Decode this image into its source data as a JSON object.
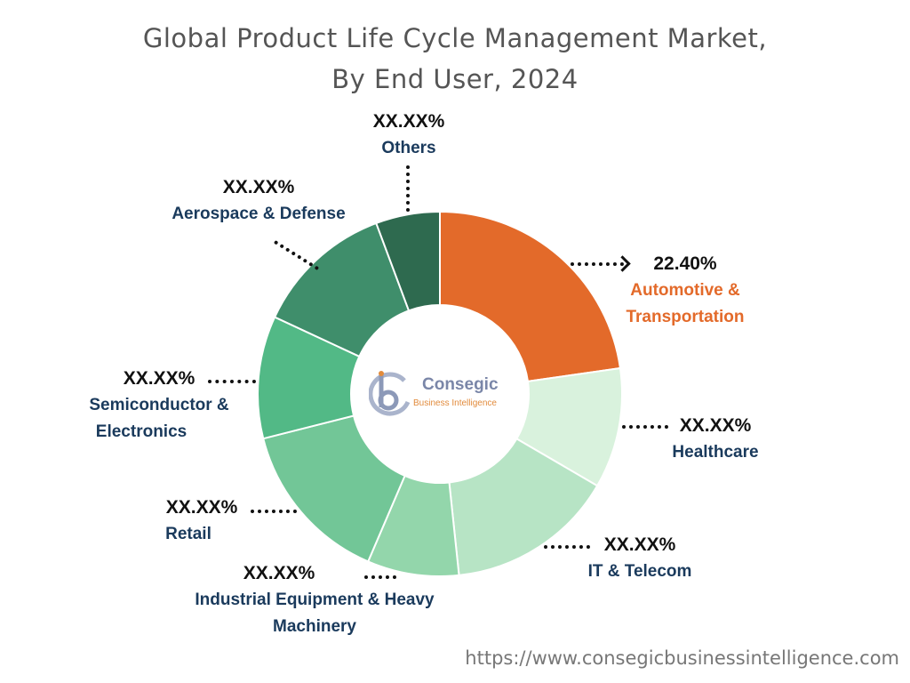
{
  "chart_data": {
    "type": "pie",
    "donut": true,
    "title": "Global Product Life Cycle Management Market,",
    "subtitle": "By End User, 2024",
    "slices": [
      {
        "key": "auto",
        "label": "Automotive & Transportation",
        "label_lines": [
          "Automotive &",
          "Transportation"
        ],
        "value_label": "22.40%",
        "value": 22.4,
        "color": "#e36a2a"
      },
      {
        "key": "health",
        "label": "Healthcare",
        "label_lines": [
          "Healthcare"
        ],
        "value_label": "XX.XX%",
        "value": 10.5,
        "color": "#d9f2dd"
      },
      {
        "key": "it",
        "label": "IT & Telecom",
        "label_lines": [
          "IT & Telecom"
        ],
        "value_label": "XX.XX%",
        "value": 14.7,
        "color": "#b7e4c5"
      },
      {
        "key": "ind",
        "label": "Industrial Equipment & Heavy Machinery",
        "label_lines": [
          "Industrial Equipment & Heavy",
          "Machinery"
        ],
        "value_label": "XX.XX%",
        "value": 8.0,
        "color": "#93d6ab"
      },
      {
        "key": "retail",
        "label": "Retail",
        "label_lines": [
          "Retail"
        ],
        "value_label": "XX.XX%",
        "value": 14.4,
        "color": "#72c697"
      },
      {
        "key": "semi",
        "label": "Semiconductor & Electronics",
        "label_lines": [
          "Semiconductor &",
          "Electronics"
        ],
        "value_label": "XX.XX%",
        "value": 10.7,
        "color": "#52b986"
      },
      {
        "key": "aero",
        "label": "Aerospace & Defense",
        "label_lines": [
          "Aerospace & Defense"
        ],
        "value_label": "XX.XX%",
        "value": 12.2,
        "color": "#3f8e6b"
      },
      {
        "key": "others",
        "label": "Others",
        "label_lines": [
          "Others"
        ],
        "value_label": "XX.XX%",
        "value": 5.6,
        "color": "#2e6a4f"
      }
    ],
    "label_colors": {
      "highlight": "#e36a2a",
      "default": "#1a3a5c"
    }
  },
  "logo": {
    "name": "Consegic",
    "tagline": "Business Intelligence"
  },
  "footer": {
    "url": "https://www.consegicbusinessintelligence.com"
  }
}
